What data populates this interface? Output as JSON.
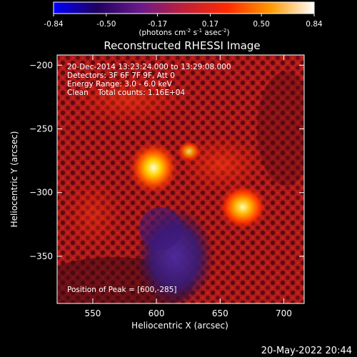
{
  "colorbar": {
    "ticks": [
      -0.84,
      -0.5,
      -0.17,
      0.17,
      0.5,
      0.84
    ],
    "tick_labels": [
      "-0.84",
      "-0.50",
      "-0.17",
      "0.17",
      "0.50",
      "0.84"
    ],
    "unit_main": "(photons cm",
    "unit_e1": "-2",
    "unit_mid": " s",
    "unit_e2": "-1",
    "unit_mid2": " asec",
    "unit_e3": "-2",
    "unit_end": ")",
    "colors": [
      "#0000ff",
      "#200060",
      "#6a1a8a",
      "#c0203a",
      "#ff2a00",
      "#ff9a00",
      "#ffffff"
    ]
  },
  "title": "Reconstructed RHESSI Image",
  "annotations": {
    "line1": "20-Dec-2014 13:23:24.000 to 13:29:08.000",
    "line2": "Detectors: 3F 6F 7F 9F, Att 0",
    "line3": "Energy Range: 3.0 - 6.0 keV",
    "line4": "Clean    Total counts: 1.16E+04",
    "peak": "Position of Peak = [600,-285]"
  },
  "axes": {
    "xlabel": "Heliocentric X (arcsec)",
    "ylabel": "Heliocentric Y (arcsec)",
    "xlim": [
      522,
      716
    ],
    "ylim": [
      -387,
      -192
    ],
    "xticks": [
      550,
      600,
      650,
      700
    ],
    "yticks": [
      -200,
      -250,
      -300,
      -350
    ]
  },
  "timestamp": "20-May-2022 20:44"
}
